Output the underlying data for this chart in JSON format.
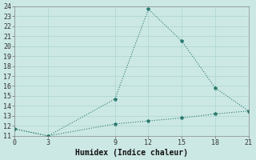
{
  "line1_x": [
    0,
    3,
    9,
    12,
    15,
    18,
    21
  ],
  "line1_y": [
    11.7,
    11.0,
    14.7,
    23.7,
    20.5,
    15.8,
    13.5
  ],
  "line2_x": [
    0,
    3,
    9,
    12,
    15,
    18,
    21
  ],
  "line2_y": [
    11.7,
    11.0,
    12.2,
    12.5,
    12.8,
    13.2,
    13.5
  ],
  "line_color": "#2a7a6e",
  "bg_color": "#cce8e4",
  "grid_color": "#aad4d0",
  "xlabel": "Humidex (Indice chaleur)",
  "ylim": [
    11,
    24
  ],
  "xlim": [
    0,
    21
  ],
  "xticks": [
    0,
    3,
    9,
    12,
    15,
    18,
    21
  ],
  "yticks": [
    11,
    12,
    13,
    14,
    15,
    16,
    17,
    18,
    19,
    20,
    21,
    22,
    23,
    24
  ],
  "marker": "*",
  "linewidth": 0.8,
  "markersize": 3,
  "tick_fontsize": 6,
  "xlabel_fontsize": 7
}
